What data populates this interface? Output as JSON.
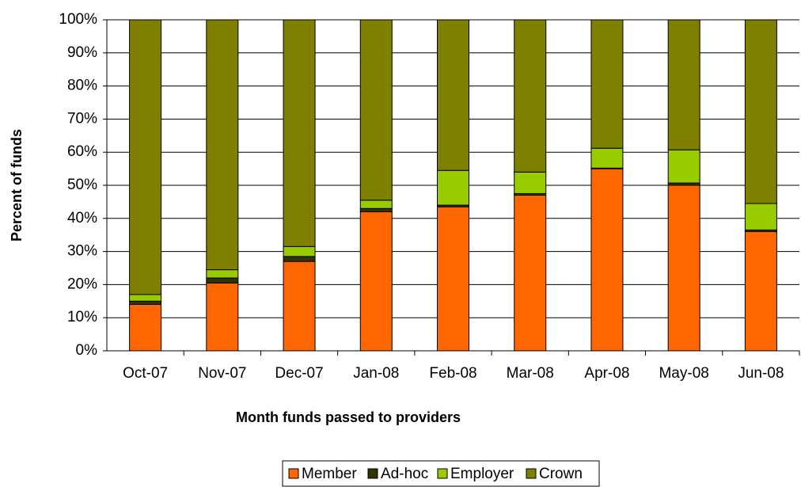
{
  "chart_data": {
    "type": "stacked_bar",
    "x_label": "Month funds passed to providers",
    "y_label": "Percent of funds",
    "categories": [
      "Oct-07",
      "Nov-07",
      "Dec-07",
      "Jan-08",
      "Feb-08",
      "Mar-08",
      "Apr-08",
      "May-08",
      "Jun-08"
    ],
    "series": [
      {
        "name": "Member",
        "color": "#ff6600",
        "values": [
          14,
          20.5,
          27,
          42,
          43.5,
          47,
          55,
          50,
          36
        ]
      },
      {
        "name": "Ad-hoc",
        "color": "#333300",
        "values": [
          1,
          1.5,
          1.5,
          1,
          0.5,
          0.5,
          0.2,
          0.7,
          0.5
        ]
      },
      {
        "name": "Employer",
        "color": "#99cc00",
        "values": [
          2,
          2.5,
          3,
          2.5,
          10.5,
          6.5,
          6,
          10,
          8
        ]
      },
      {
        "name": "Crown",
        "color": "#808000",
        "values": [
          83,
          75.5,
          68.5,
          54.5,
          45.5,
          46,
          38.8,
          39.3,
          55.5
        ]
      }
    ],
    "ylim": [
      0,
      100
    ],
    "yticks": [
      {
        "value": 0,
        "label": "0%"
      },
      {
        "value": 10,
        "label": "10%"
      },
      {
        "value": 20,
        "label": "20%"
      },
      {
        "value": 30,
        "label": "30%"
      },
      {
        "value": 40,
        "label": "40%"
      },
      {
        "value": 50,
        "label": "50%"
      },
      {
        "value": 60,
        "label": "60%"
      },
      {
        "value": 70,
        "label": "70%"
      },
      {
        "value": 80,
        "label": "80%"
      },
      {
        "value": 90,
        "label": "90%"
      },
      {
        "value": 100,
        "label": "100%"
      }
    ],
    "grid": true
  }
}
